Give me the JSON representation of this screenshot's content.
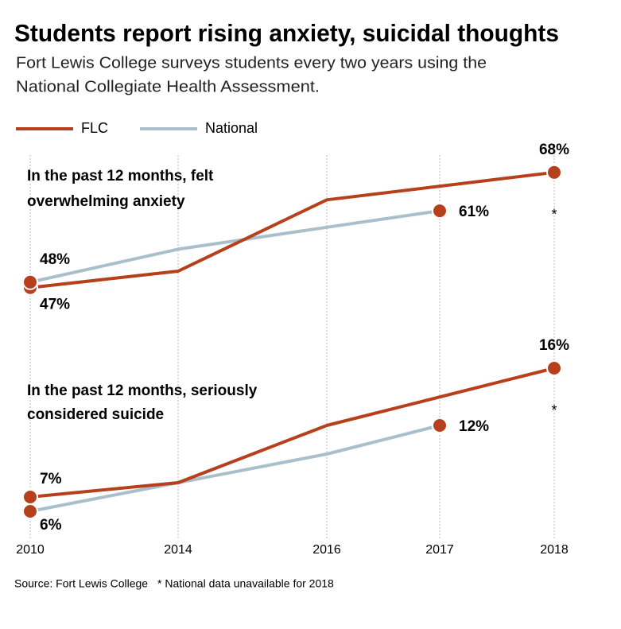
{
  "chart_data": {
    "type": "line",
    "title": "Students report rising anxiety, suicidal thoughts",
    "subtitle": [
      "Fort Lewis College surveys students every two years using the",
      "National Collegiate Health Assessment."
    ],
    "source": "Source: Fort Lewis College",
    "footnote": "* National data unavailable for 2018",
    "xticks": [
      2010,
      2014,
      2016,
      2017,
      2018
    ],
    "grid": true,
    "marker_color": "#b5401b",
    "panels": [
      {
        "title": [
          "In the past 12 months, felt",
          "overwhelming anxiety"
        ],
        "ylim": [
          40,
          70
        ],
        "note": "*",
        "series": [
          {
            "name": "FLC",
            "color": "#b5401b",
            "x": [
              2010,
              2014,
              2016,
              2018
            ],
            "values": [
              47,
              50,
              63,
              68
            ],
            "value_labels": [
              "47%",
              null,
              null,
              "68%"
            ]
          },
          {
            "name": "National",
            "color": "#a9bfcc",
            "x": [
              2010,
              2014,
              2016,
              2017
            ],
            "values": [
              48,
              54,
              58,
              61
            ],
            "value_labels": [
              "48%",
              null,
              null,
              "61%"
            ]
          }
        ]
      },
      {
        "title": [
          "In the past 12 months, seriously",
          "considered suicide"
        ],
        "ylim": [
          4,
          17
        ],
        "note": "*",
        "series": [
          {
            "name": "FLC",
            "color": "#b5401b",
            "x": [
              2010,
              2014,
              2016,
              2018
            ],
            "values": [
              7,
              8,
              12,
              16
            ],
            "value_labels": [
              "7%",
              null,
              null,
              "16%"
            ]
          },
          {
            "name": "National",
            "color": "#a9bfcc",
            "x": [
              2010,
              2014,
              2016,
              2017
            ],
            "values": [
              6,
              8,
              10,
              12
            ],
            "value_labels": [
              "6%",
              null,
              null,
              "12%"
            ]
          }
        ]
      }
    ]
  }
}
